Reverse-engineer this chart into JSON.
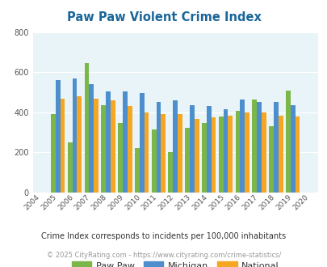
{
  "title": "Paw Paw Violent Crime Index",
  "years": [
    2004,
    2005,
    2006,
    2007,
    2008,
    2009,
    2010,
    2011,
    2012,
    2013,
    2014,
    2015,
    2016,
    2017,
    2018,
    2019,
    2020
  ],
  "paw_paw": [
    null,
    390,
    248,
    645,
    435,
    345,
    222,
    315,
    200,
    320,
    345,
    380,
    408,
    465,
    328,
    508,
    null
  ],
  "michigan": [
    null,
    562,
    568,
    538,
    505,
    505,
    495,
    450,
    458,
    435,
    430,
    415,
    465,
    450,
    450,
    435,
    null
  ],
  "national": [
    null,
    469,
    478,
    468,
    458,
    430,
    400,
    390,
    390,
    368,
    375,
    383,
    398,
    400,
    382,
    380,
    null
  ],
  "paw_paw_color": "#7ab648",
  "michigan_color": "#4d8fcc",
  "national_color": "#f5a623",
  "bg_color": "#e8f4f8",
  "ylim": [
    0,
    800
  ],
  "yticks": [
    0,
    200,
    400,
    600,
    800
  ],
  "subtitle": "Crime Index corresponds to incidents per 100,000 inhabitants",
  "copyright": "© 2025 CityRating.com - https://www.cityrating.com/crime-statistics/",
  "title_color": "#1a6699",
  "subtitle_color": "#333333",
  "copyright_color": "#999999",
  "legend_labels": [
    "Paw Paw",
    "Michigan",
    "National"
  ]
}
